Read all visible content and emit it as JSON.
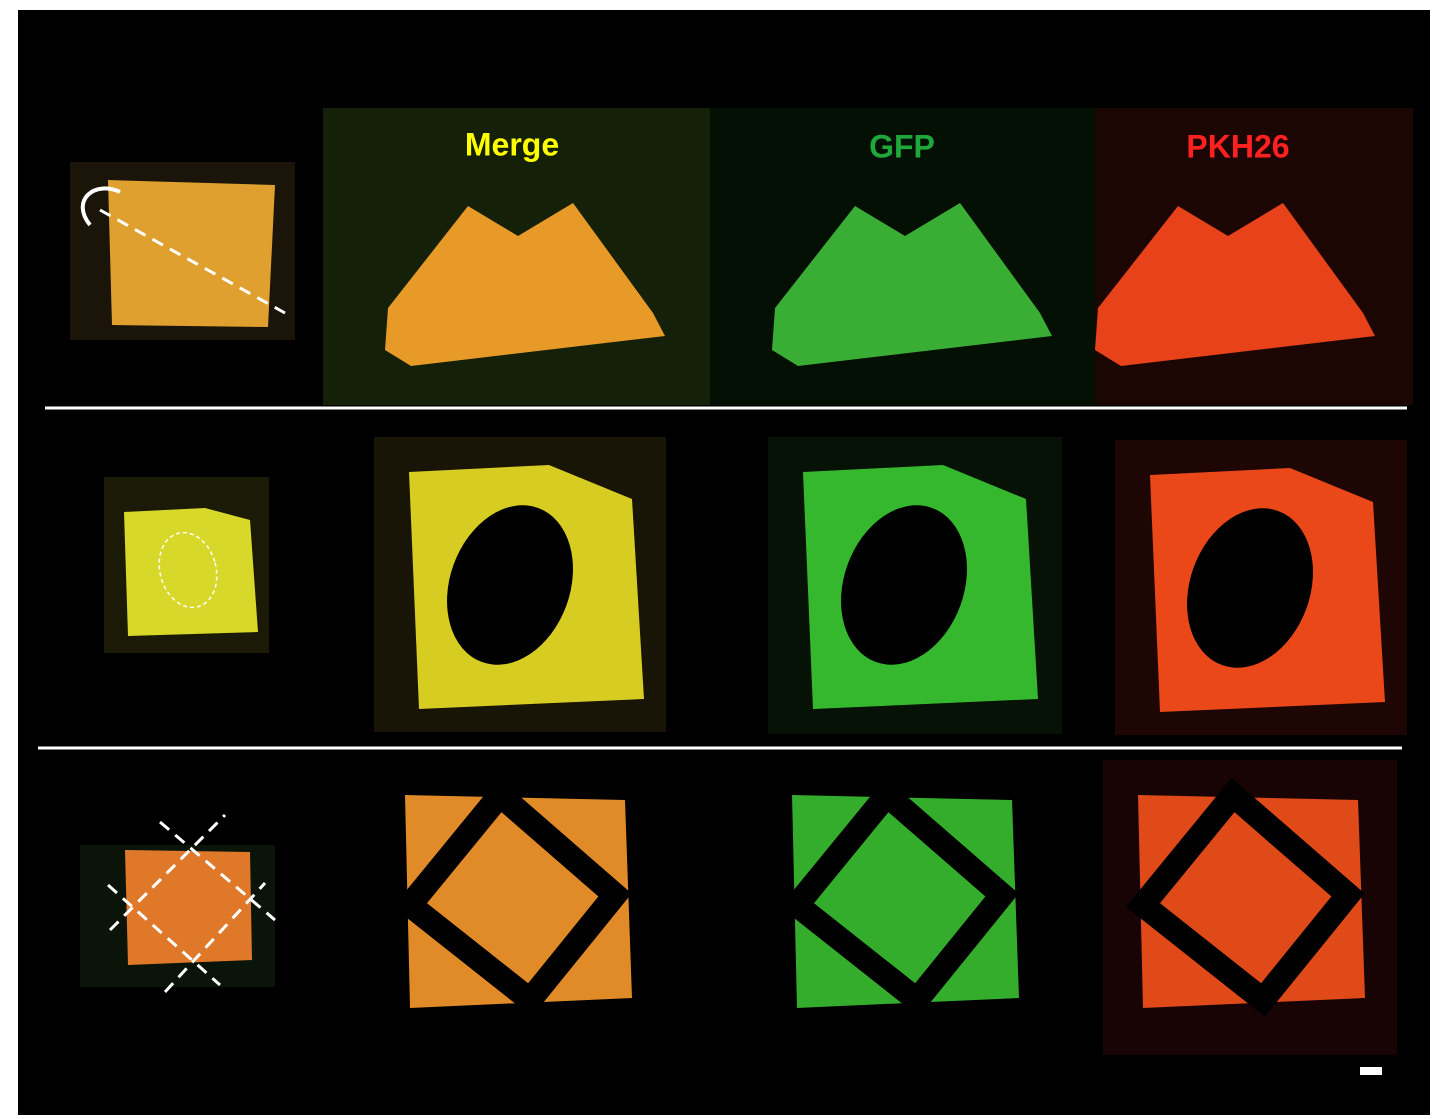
{
  "header": {
    "labels": [
      "Merge",
      "GFP",
      "PKH26"
    ]
  }
}
